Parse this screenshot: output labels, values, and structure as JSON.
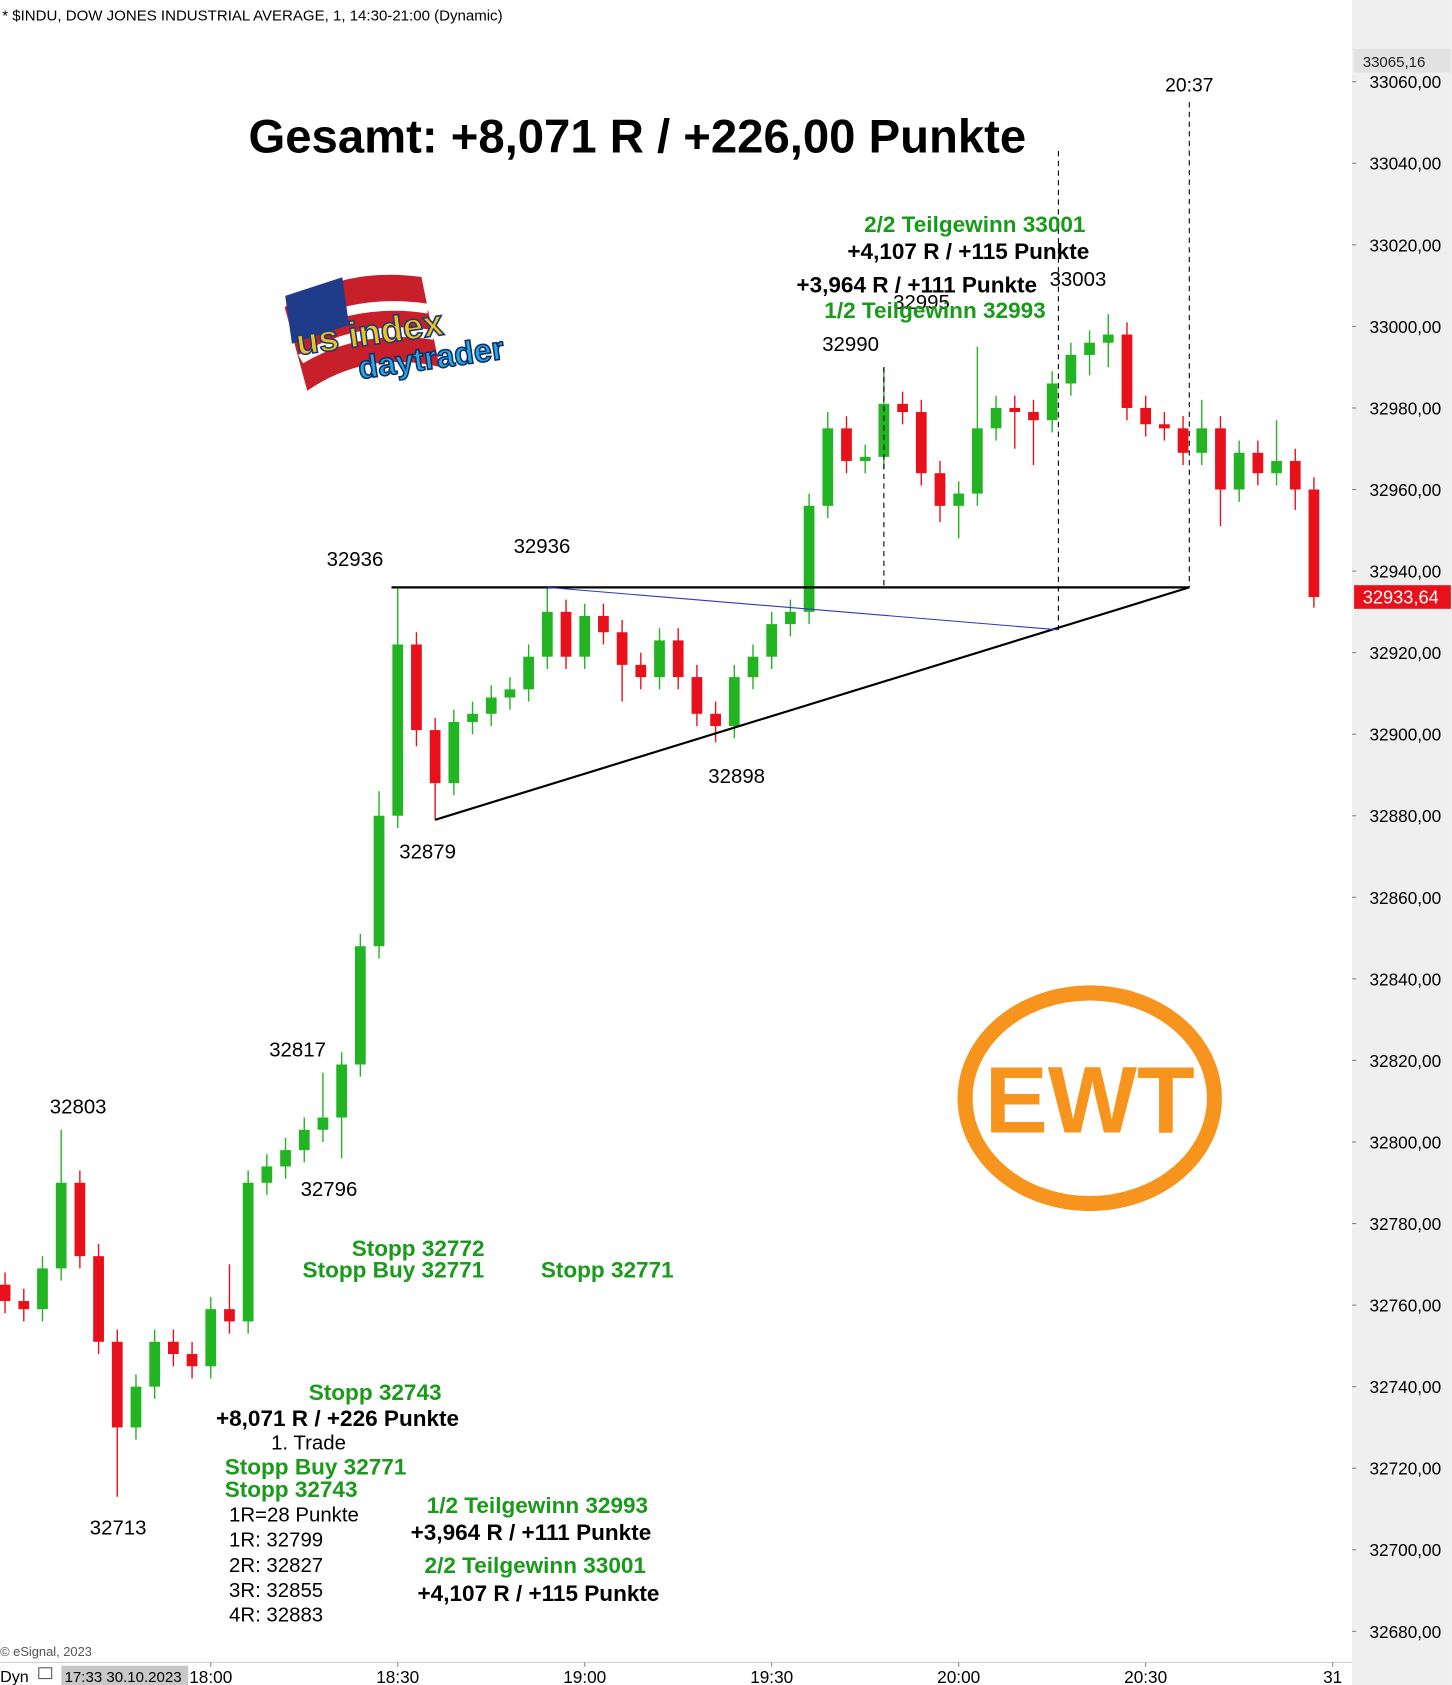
{
  "header": "* $INDU, DOW JONES INDUSTRIAL AVERAGE, 1, 14:30-21:00 (Dynamic)",
  "footer": {
    "copyright": "© eSignal, 2023",
    "mode": "Dyn",
    "timestamp": "17:33 30.10.2023"
  },
  "logos": {
    "usindex": [
      "us index",
      "daytrader"
    ],
    "ewt": "EWT"
  },
  "chart_data": {
    "type": "candlestick",
    "title": "Gesamt: +8,071 R / +226,00 Punkte",
    "up_color": "#22b422",
    "down_color": "#e8101a",
    "xlim": [
      1046.2,
      1263.1
    ],
    "ylim": [
      32672.9,
      33069.5
    ],
    "xticks": [
      {
        "value": 1080,
        "label": "18:00"
      },
      {
        "value": 1110,
        "label": "18:30"
      },
      {
        "value": 1140,
        "label": "19:00"
      },
      {
        "value": 1170,
        "label": "19:30"
      },
      {
        "value": 1200,
        "label": "20:00"
      },
      {
        "value": 1230,
        "label": "20:30"
      },
      {
        "value": 1260,
        "label": "31"
      }
    ],
    "yticks": [
      {
        "value": 33060,
        "label": "33060,00"
      },
      {
        "value": 33040,
        "label": "33040,00"
      },
      {
        "value": 33020,
        "label": "33020,00"
      },
      {
        "value": 33000,
        "label": "33000,00"
      },
      {
        "value": 32980,
        "label": "32980,00"
      },
      {
        "value": 32960,
        "label": "32960,00"
      },
      {
        "value": 32940,
        "label": "32940,00"
      },
      {
        "value": 32920,
        "label": "32920,00"
      },
      {
        "value": 32900,
        "label": "32900,00"
      },
      {
        "value": 32880,
        "label": "32880,00"
      },
      {
        "value": 32860,
        "label": "32860,00"
      },
      {
        "value": 32840,
        "label": "32840,00"
      },
      {
        "value": 32820,
        "label": "32820,00"
      },
      {
        "value": 32800,
        "label": "32800,00"
      },
      {
        "value": 32780,
        "label": "32780,00"
      },
      {
        "value": 32760,
        "label": "32760,00"
      },
      {
        "value": 32740,
        "label": "32740,00"
      },
      {
        "value": 32720,
        "label": "32720,00"
      },
      {
        "value": 32700,
        "label": "32700,00"
      },
      {
        "value": 32680,
        "label": "32680,00"
      }
    ],
    "high_price": {
      "value": 33065.16,
      "label": "33065,16"
    },
    "last_price": {
      "value": 32933.64,
      "label": "32933,64"
    },
    "x": [
      1047,
      1050,
      1053,
      1056,
      1059,
      1062,
      1065,
      1068,
      1071,
      1074,
      1077,
      1080,
      1083,
      1086,
      1089,
      1092,
      1095,
      1098,
      1101,
      1104,
      1107,
      1110,
      1113,
      1116,
      1119,
      1122,
      1125,
      1128,
      1131,
      1134,
      1137,
      1140,
      1143,
      1146,
      1149,
      1152,
      1155,
      1158,
      1161,
      1164,
      1167,
      1170,
      1173,
      1176,
      1179,
      1182,
      1185,
      1188,
      1191,
      1194,
      1197,
      1200,
      1203,
      1206,
      1209,
      1212,
      1215,
      1218,
      1221,
      1224,
      1227,
      1230,
      1233,
      1236,
      1239,
      1242,
      1245,
      1248,
      1251,
      1254,
      1257
    ],
    "open": [
      32765,
      32761,
      32759,
      32769,
      32790,
      32772,
      32751,
      32730,
      32740,
      32751,
      32748,
      32745,
      32759,
      32756,
      32790,
      32794,
      32798,
      32803,
      32806,
      32819,
      32848,
      32880,
      32922,
      32901,
      32888,
      32903,
      32905,
      32909,
      32911,
      32919,
      32930,
      32919,
      32929,
      32925,
      32917,
      32914,
      32923,
      32914,
      32905,
      32902,
      32914,
      32919,
      32927,
      32930,
      32956,
      32975,
      32967,
      32968,
      32981,
      32979,
      32964,
      32956,
      32959,
      32975,
      32980,
      32979,
      32977,
      32986,
      32993,
      32996,
      32998,
      32980,
      32976,
      32975,
      32969,
      32975,
      32960,
      32969,
      32964,
      32967,
      32960
    ],
    "high": [
      32768,
      32764,
      32772,
      32803,
      32793,
      32775,
      32754,
      32743,
      32754,
      32754,
      32751,
      32762,
      32770,
      32793,
      32797,
      32801,
      32806,
      32817,
      32822,
      32851,
      32886,
      32936,
      32925,
      32904,
      32906,
      32908,
      32912,
      32914,
      32922,
      32936,
      32933,
      32932,
      32932,
      32928,
      32920,
      32926,
      32926,
      32917,
      32908,
      32917,
      32922,
      32930,
      32933,
      32959,
      32979,
      32978,
      32971,
      32990,
      32984,
      32982,
      32967,
      32962,
      32995,
      32983,
      32983,
      32982,
      32989,
      32996,
      32999,
      33003,
      33001,
      32983,
      32979,
      32978,
      32982,
      32978,
      32972,
      32972,
      32977,
      32970,
      32963
    ],
    "low": [
      32758,
      32756,
      32756,
      32766,
      32769,
      32748,
      32713,
      32727,
      32737,
      32745,
      32742,
      32742,
      32753,
      32753,
      32787,
      32791,
      32795,
      32800,
      32796,
      32816,
      32845,
      32877,
      32897,
      32879,
      32885,
      32900,
      32902,
      32906,
      32908,
      32916,
      32916,
      32916,
      32922,
      32908,
      32911,
      32911,
      32911,
      32902,
      32898,
      32899,
      32911,
      32916,
      32924,
      32927,
      32953,
      32964,
      32964,
      32965,
      32976,
      32961,
      32952,
      32948,
      32956,
      32972,
      32970,
      32966,
      32974,
      32983,
      32988,
      32990,
      32977,
      32973,
      32972,
      32966,
      32966,
      32951,
      32957,
      32961,
      32961,
      32955,
      32931
    ],
    "close": [
      32761,
      32759,
      32769,
      32790,
      32772,
      32751,
      32730,
      32740,
      32751,
      32748,
      32745,
      32759,
      32756,
      32790,
      32794,
      32798,
      32803,
      32806,
      32819,
      32848,
      32880,
      32922,
      32901,
      32888,
      32903,
      32905,
      32909,
      32911,
      32919,
      32930,
      32919,
      32929,
      32925,
      32917,
      32914,
      32923,
      32914,
      32905,
      32902,
      32914,
      32919,
      32927,
      32930,
      32956,
      32975,
      32967,
      32968,
      32981,
      32979,
      32964,
      32956,
      32959,
      32975,
      32980,
      32979,
      32977,
      32986,
      32993,
      32996,
      32998,
      32980,
      32976,
      32975,
      32969,
      32975,
      32960,
      32969,
      32964,
      32967,
      32960,
      32933.64
    ],
    "pivots": [
      {
        "x": 1057,
        "value": 32803
      },
      {
        "x": 1066,
        "value": 32713
      },
      {
        "x": 1096,
        "value": 32817
      },
      {
        "x": 1100,
        "value": 32796
      },
      {
        "x": 1109,
        "value": 32936
      },
      {
        "x": 1116,
        "value": 32879
      },
      {
        "x": 1134,
        "value": 32936
      },
      {
        "x": 1163,
        "value": 32898
      },
      {
        "x": 1188,
        "value": 32990
      },
      {
        "x": 1198,
        "value": 32995
      },
      {
        "x": 1220,
        "value": 33003
      }
    ],
    "trendlines": [
      {
        "x": [
          1109,
          1237
        ],
        "y": [
          32936,
          32936
        ],
        "color": "#000000"
      },
      {
        "x": [
          1116,
          1237
        ],
        "y": [
          32879,
          32936
        ],
        "color": "#000000"
      },
      {
        "x": [
          1134,
          1216
        ],
        "y": [
          32936,
          32925.6
        ],
        "color": "#3333cc"
      }
    ],
    "vlines": [
      {
        "x": 1188,
        "y": [
          32990,
          32936
        ]
      },
      {
        "x": 1216,
        "y": [
          33043,
          32925.6
        ]
      },
      {
        "x": 1237,
        "y": [
          33055,
          32936
        ],
        "label": "20:37"
      }
    ],
    "annotations": [
      {
        "text": "2/2 Teilgewinn 33001",
        "color": "#1a9a1a"
      },
      {
        "text": "+4,107 R / +115 Punkte",
        "color": "#000000"
      },
      {
        "text": "+3,964 R / +111 Punkte",
        "color": "#000000"
      },
      {
        "text": "1/2 Teilgewinn 32993",
        "color": "#1a9a1a"
      },
      {
        "text": "Stopp 32772",
        "color": "#1a9a1a"
      },
      {
        "text": "Stopp Buy 32771",
        "color": "#1a9a1a"
      },
      {
        "text": "Stopp 32771",
        "color": "#1a9a1a"
      },
      {
        "text": "Stopp 32743",
        "color": "#1a9a1a"
      },
      {
        "text": "+8,071 R / +226 Punkte",
        "color": "#000000"
      },
      {
        "text": "1. Trade",
        "color": "#000000"
      },
      {
        "text": "Stopp Buy 32771",
        "color": "#1a9a1a"
      },
      {
        "text": "Stopp 32743",
        "color": "#1a9a1a"
      },
      {
        "text": "1R=28 Punkte",
        "color": "#000000"
      },
      {
        "text": "1R: 32799",
        "color": "#000000"
      },
      {
        "text": "2R: 32827",
        "color": "#000000"
      },
      {
        "text": "3R: 32855",
        "color": "#000000"
      },
      {
        "text": "4R: 32883",
        "color": "#000000"
      },
      {
        "text": "1/2 Teilgewinn 32993",
        "color": "#1a9a1a"
      },
      {
        "text": "+3,964 R / +111 Punkte",
        "color": "#000000"
      },
      {
        "text": "2/2 Teilgewinn 33001",
        "color": "#1a9a1a"
      },
      {
        "text": "+4,107 R / +115 Punkte",
        "color": "#000000"
      }
    ]
  }
}
